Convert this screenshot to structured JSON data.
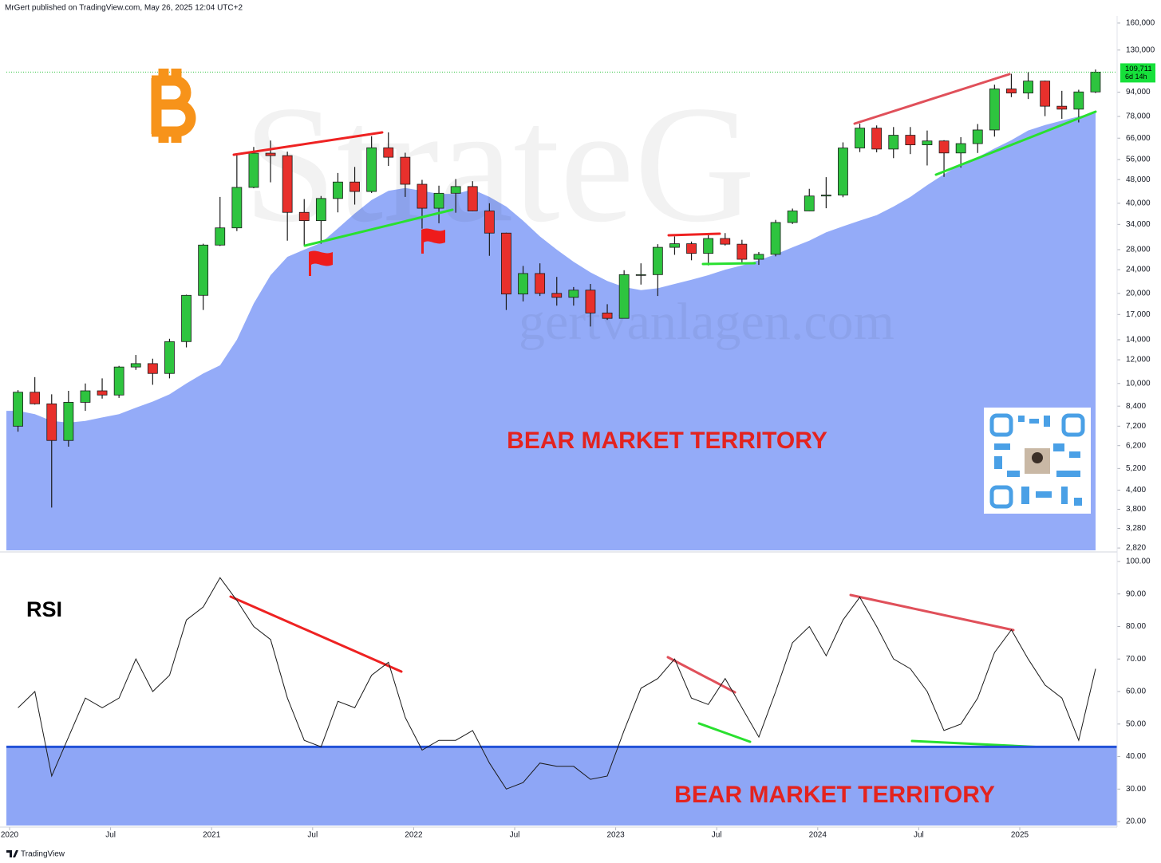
{
  "header": "MrGert published on TradingView.com, May 26, 2025 12:04 UTC+2",
  "footer": "TradingView",
  "watermark": "StrateG",
  "website": "gertvanlagen.com",
  "chart_data": [
    {
      "type": "candlestick",
      "annotation": "BEAR MARKET TERRITORY",
      "log_scale": true,
      "up_color": "#2ec43f",
      "down_color": "#e8302c",
      "area_color": "#94abf8",
      "ylim": [
        2770,
        169000
      ],
      "yticks": [
        {
          "value": 160000,
          "label": "160,000"
        },
        {
          "value": 130000,
          "label": "130,000"
        },
        {
          "value": 94000,
          "label": "94,000"
        },
        {
          "value": 78000,
          "label": "78,000"
        },
        {
          "value": 66000,
          "label": "66,000"
        },
        {
          "value": 56000,
          "label": "56,000"
        },
        {
          "value": 48000,
          "label": "48,000"
        },
        {
          "value": 40000,
          "label": "40,000"
        },
        {
          "value": 34000,
          "label": "34,000"
        },
        {
          "value": 28000,
          "label": "28,000"
        },
        {
          "value": 24000,
          "label": "24,000"
        },
        {
          "value": 20000,
          "label": "20,000"
        },
        {
          "value": 17000,
          "label": "17,000"
        },
        {
          "value": 14000,
          "label": "14,000"
        },
        {
          "value": 12000,
          "label": "12,000"
        },
        {
          "value": 10000,
          "label": "10,000"
        },
        {
          "value": 8400,
          "label": "8,400"
        },
        {
          "value": 7200,
          "label": "7,200"
        },
        {
          "value": 6200,
          "label": "6,200"
        },
        {
          "value": 5200,
          "label": "5,200"
        },
        {
          "value": 4400,
          "label": "4,400"
        },
        {
          "value": 3800,
          "label": "3,800"
        },
        {
          "value": 3280,
          "label": "3,280"
        },
        {
          "value": 2820,
          "label": "2,820"
        }
      ],
      "last_price": {
        "value": 109711,
        "label": "109,711"
      },
      "countdown": "6d 14h",
      "x": [
        "2020-01",
        "2020-02",
        "2020-03",
        "2020-04",
        "2020-05",
        "2020-06",
        "2020-07",
        "2020-08",
        "2020-09",
        "2020-10",
        "2020-11",
        "2020-12",
        "2021-01",
        "2021-02",
        "2021-03",
        "2021-04",
        "2021-05",
        "2021-06",
        "2021-07",
        "2021-08",
        "2021-09",
        "2021-10",
        "2021-11",
        "2021-12",
        "2022-01",
        "2022-02",
        "2022-03",
        "2022-04",
        "2022-05",
        "2022-06",
        "2022-07",
        "2022-08",
        "2022-09",
        "2022-10",
        "2022-11",
        "2022-12",
        "2023-01",
        "2023-02",
        "2023-03",
        "2023-04",
        "2023-05",
        "2023-06",
        "2023-07",
        "2023-08",
        "2023-09",
        "2023-10",
        "2023-11",
        "2023-12",
        "2024-01",
        "2024-02",
        "2024-03",
        "2024-04",
        "2024-05",
        "2024-06",
        "2024-07",
        "2024-08",
        "2024-09",
        "2024-10",
        "2024-11",
        "2024-12",
        "2025-01",
        "2025-02",
        "2025-03",
        "2025-04",
        "2025-05"
      ],
      "open": [
        7200,
        9350,
        8550,
        6450,
        8650,
        9450,
        9150,
        11350,
        11650,
        10800,
        13800,
        19700,
        29000,
        33100,
        45200,
        58800,
        57700,
        37300,
        35000,
        41500,
        47100,
        43800,
        61300,
        57000,
        46300,
        38500,
        43200,
        45500,
        37700,
        31800,
        19900,
        23300,
        20000,
        19400,
        20500,
        17200,
        16500,
        23100,
        23100,
        28500,
        29300,
        27200,
        30500,
        29200,
        26000,
        27000,
        34500,
        37700,
        42300,
        42600,
        61200,
        71300,
        60700,
        67500,
        62700,
        64600,
        58900,
        63300,
        70300,
        96400,
        93400,
        102400,
        84400,
        82500,
        94200
      ],
      "high": [
        9500,
        10500,
        9200,
        9450,
        10000,
        10400,
        11450,
        12450,
        12100,
        14100,
        19800,
        29300,
        42000,
        58300,
        61700,
        64800,
        59500,
        41300,
        42300,
        50500,
        52900,
        67000,
        69000,
        59000,
        47900,
        45800,
        48200,
        47400,
        40000,
        31900,
        24700,
        25200,
        22700,
        21000,
        21500,
        18400,
        23900,
        25200,
        29200,
        31000,
        29800,
        31400,
        31800,
        30200,
        27500,
        35200,
        38400,
        44700,
        48900,
        63900,
        73800,
        72800,
        71900,
        71900,
        70000,
        65000,
        66500,
        73600,
        99600,
        108300,
        109600,
        102800,
        95000,
        95800,
        111900
      ],
      "low": [
        6900,
        8500,
        3850,
        6150,
        8100,
        8900,
        8950,
        11100,
        9900,
        10400,
        13200,
        17600,
        28800,
        32300,
        44900,
        47000,
        30000,
        28800,
        29300,
        37300,
        39600,
        43300,
        53300,
        42000,
        32900,
        34300,
        37200,
        37600,
        26700,
        17600,
        18800,
        19600,
        18200,
        18200,
        15500,
        16300,
        16500,
        21400,
        19600,
        26900,
        25800,
        24800,
        28900,
        25200,
        24900,
        26600,
        34100,
        37600,
        38500,
        41900,
        59300,
        59200,
        56600,
        58400,
        53500,
        49000,
        52600,
        58900,
        66800,
        90500,
        89200,
        78200,
        76600,
        74500,
        93400
      ],
      "close": [
        9350,
        8550,
        6450,
        8650,
        9450,
        9150,
        11350,
        11650,
        10800,
        13800,
        19700,
        29000,
        33100,
        45200,
        58800,
        57700,
        37300,
        35000,
        41500,
        47100,
        43800,
        61300,
        57000,
        46300,
        38500,
        43200,
        45500,
        37700,
        31800,
        19900,
        23300,
        20000,
        19400,
        20500,
        17200,
        16500,
        23100,
        23100,
        28500,
        29300,
        27200,
        30500,
        29200,
        26000,
        27000,
        34500,
        37700,
        42300,
        42600,
        61200,
        71300,
        60700,
        67500,
        62700,
        64600,
        58900,
        63300,
        70300,
        96400,
        93400,
        102400,
        84400,
        82500,
        94200,
        109711
      ],
      "area_values": [
        8100,
        7900,
        7500,
        7400,
        7500,
        7700,
        7900,
        8300,
        8700,
        9200,
        10000,
        10800,
        11500,
        14000,
        18500,
        23000,
        26500,
        28000,
        29500,
        33000,
        37000,
        41000,
        44000,
        45000,
        44000,
        43000,
        43000,
        44500,
        42000,
        39000,
        35000,
        31000,
        28000,
        25500,
        23500,
        22000,
        21000,
        20500,
        20800,
        21500,
        22200,
        23000,
        24000,
        24800,
        25800,
        27000,
        28500,
        30000,
        32000,
        33500,
        35000,
        36500,
        39000,
        42000,
        46000,
        50000,
        54000,
        57000,
        61000,
        65000,
        70000,
        73000,
        75500,
        78000,
        80500
      ]
    },
    {
      "type": "line",
      "label": "RSI",
      "annotation": "BEAR MARKET TERRITORY",
      "color": "#1a1a1a",
      "level": 43,
      "level_color": "#2352d8",
      "fill_color": "#8ea6f6",
      "ylim": [
        18.8,
        101.7
      ],
      "yticks": [
        {
          "value": 100,
          "label": "100.00"
        },
        {
          "value": 90,
          "label": "90.00"
        },
        {
          "value": 80,
          "label": "80.00"
        },
        {
          "value": 70,
          "label": "70.00"
        },
        {
          "value": 60,
          "label": "60.00"
        },
        {
          "value": 50,
          "label": "50.00"
        },
        {
          "value": 40,
          "label": "40.00"
        },
        {
          "value": 30,
          "label": "30.00"
        },
        {
          "value": 20,
          "label": "20.00"
        }
      ],
      "xticks": [
        {
          "value": "2020-01",
          "label": "2020"
        },
        {
          "value": "2020-07",
          "label": "Jul"
        },
        {
          "value": "2021-01",
          "label": "2021"
        },
        {
          "value": "2021-07",
          "label": "Jul"
        },
        {
          "value": "2022-01",
          "label": "2022"
        },
        {
          "value": "2022-07",
          "label": "Jul"
        },
        {
          "value": "2023-01",
          "label": "2023"
        },
        {
          "value": "2023-07",
          "label": "Jul"
        },
        {
          "value": "2024-01",
          "label": "2024"
        },
        {
          "value": "2024-07",
          "label": "Jul"
        },
        {
          "value": "2025-01",
          "label": "2025"
        }
      ],
      "x": [
        "2020-01",
        "2020-02",
        "2020-03",
        "2020-04",
        "2020-05",
        "2020-06",
        "2020-07",
        "2020-08",
        "2020-09",
        "2020-10",
        "2020-11",
        "2020-12",
        "2021-01",
        "2021-02",
        "2021-03",
        "2021-04",
        "2021-05",
        "2021-06",
        "2021-07",
        "2021-08",
        "2021-09",
        "2021-10",
        "2021-11",
        "2021-12",
        "2022-01",
        "2022-02",
        "2022-03",
        "2022-04",
        "2022-05",
        "2022-06",
        "2022-07",
        "2022-08",
        "2022-09",
        "2022-10",
        "2022-11",
        "2022-12",
        "2023-01",
        "2023-02",
        "2023-03",
        "2023-04",
        "2023-05",
        "2023-06",
        "2023-07",
        "2023-08",
        "2023-09",
        "2023-10",
        "2023-11",
        "2023-12",
        "2024-01",
        "2024-02",
        "2024-03",
        "2024-04",
        "2024-05",
        "2024-06",
        "2024-07",
        "2024-08",
        "2024-09",
        "2024-10",
        "2024-11",
        "2024-12",
        "2025-01",
        "2025-02",
        "2025-03",
        "2025-04",
        "2025-05"
      ],
      "values": [
        55,
        60,
        34,
        46,
        58,
        55,
        58,
        70,
        60,
        65,
        82,
        86,
        95,
        88,
        80,
        76,
        58,
        45,
        43,
        57,
        55,
        65,
        69,
        52,
        42,
        45,
        45,
        48,
        38,
        30,
        32,
        38,
        37,
        37,
        33,
        34,
        48,
        61,
        64,
        70,
        58,
        56,
        64,
        55,
        46,
        60,
        75,
        80,
        71,
        82,
        89,
        80,
        70,
        67,
        60,
        48,
        50,
        58,
        72,
        79,
        70,
        62,
        58,
        45,
        67
      ]
    }
  ]
}
